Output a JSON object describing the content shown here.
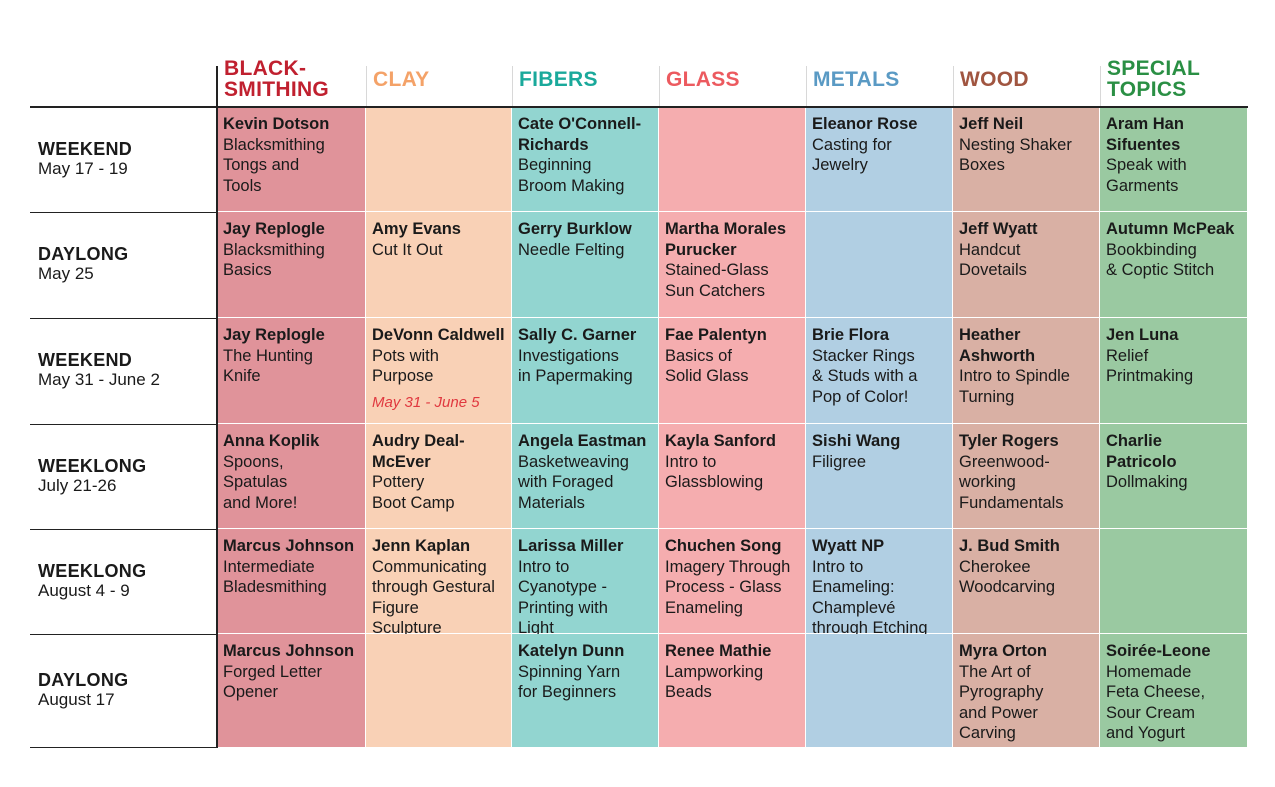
{
  "colors": {
    "blacksmithing": "#e0939a",
    "clay": "#f9d1b6",
    "fibers": "#92d5d0",
    "glass": "#f5adaf",
    "metals": "#b1cfe3",
    "wood": "#d9b0a4",
    "special": "#9ac9a1"
  },
  "columns": [
    {
      "key": "blacksmithing",
      "label": "BLACK-\nSMITHING",
      "color": "#c0202f"
    },
    {
      "key": "clay",
      "label": "CLAY",
      "color": "#f4a268"
    },
    {
      "key": "fibers",
      "label": "FIBERS",
      "color": "#1aa99b"
    },
    {
      "key": "glass",
      "label": "GLASS",
      "color": "#ec5a5f"
    },
    {
      "key": "metals",
      "label": "METALS",
      "color": "#5a9ac4"
    },
    {
      "key": "wood",
      "label": "WOOD",
      "color": "#a05540"
    },
    {
      "key": "special",
      "label": "SPECIAL\nTOPICS",
      "color": "#2a8f44"
    }
  ],
  "rows": [
    {
      "type": "WEEKEND",
      "dates": "May 17 - 19",
      "cells": [
        {
          "name": "Kevin Dotson",
          "title": "Blacksmithing\nTongs and\nTools"
        },
        null,
        {
          "name": "Cate O'Connell-\nRichards",
          "title": "Beginning\nBroom Making"
        },
        null,
        {
          "name": "Eleanor Rose",
          "title": "Casting for\nJewelry"
        },
        {
          "name": "Jeff Neil",
          "title": "Nesting Shaker\nBoxes"
        },
        {
          "name": "Aram Han\nSifuentes",
          "title": "Speak with\nGarments"
        }
      ]
    },
    {
      "type": "DAYLONG",
      "dates": "May 25",
      "cells": [
        {
          "name": "Jay Replogle",
          "title": "Blacksmithing\nBasics"
        },
        {
          "name": "Amy Evans",
          "title": "Cut It Out"
        },
        {
          "name": "Gerry Burklow",
          "title": "Needle Felting"
        },
        {
          "name": "Martha Morales\nPurucker",
          "title": "Stained-Glass\nSun Catchers"
        },
        null,
        {
          "name": "Jeff Wyatt",
          "title": "Handcut\nDovetails"
        },
        {
          "name": "Autumn McPeak",
          "title": "Bookbinding\n& Coptic Stitch"
        }
      ]
    },
    {
      "type": "WEEKEND",
      "dates": "May 31 - June 2",
      "cells": [
        {
          "name": "Jay Replogle",
          "title": "The Hunting\nKnife"
        },
        {
          "name": "DeVonn Caldwell",
          "title": "Pots with\nPurpose",
          "note": "May 31 - June 5"
        },
        {
          "name": "Sally C. Garner",
          "title": "Investigations\nin Papermaking"
        },
        {
          "name": "Fae Palentyn",
          "title": "Basics of\nSolid Glass"
        },
        {
          "name": "Brie Flora",
          "title": "Stacker Rings\n& Studs with a\nPop of Color!"
        },
        {
          "name": "Heather\nAshworth",
          "title": "Intro to Spindle\nTurning"
        },
        {
          "name": "Jen Luna",
          "title": "Relief\nPrintmaking"
        }
      ]
    },
    {
      "type": "WEEKLONG",
      "dates": "July 21-26",
      "cells": [
        {
          "name": "Anna Koplik",
          "title": "Spoons,\nSpatulas\nand More!"
        },
        {
          "name": "Audry Deal-\nMcEver",
          "title": "Pottery\nBoot Camp"
        },
        {
          "name": "Angela Eastman",
          "title": "Basketweaving\nwith Foraged\nMaterials"
        },
        {
          "name": "Kayla Sanford",
          "title": "Intro to\nGlassblowing"
        },
        {
          "name": "Sishi Wang",
          "title": "Filigree"
        },
        {
          "name": "Tyler Rogers",
          "title": "Greenwood-\nworking\nFundamentals"
        },
        {
          "name": "Charlie\nPatricolo",
          "title": "Dollmaking"
        }
      ]
    },
    {
      "type": "WEEKLONG",
      "dates": "August 4 - 9",
      "cells": [
        {
          "name": "Marcus Johnson",
          "title": "Intermediate\nBladesmithing"
        },
        {
          "name": "Jenn Kaplan",
          "title": "Communicating\nthrough Gestural\nFigure\nSculpture"
        },
        {
          "name": "Larissa Miller",
          "title": "Intro to\nCyanotype -\nPrinting with\nLight"
        },
        {
          "name": "Chuchen Song",
          "title": "Imagery Through\nProcess - Glass\nEnameling"
        },
        {
          "name": "Wyatt NP",
          "title": "Intro to\nEnameling:\nChamplevé\nthrough Etching"
        },
        {
          "name": "J. Bud Smith",
          "title": "Cherokee\nWoodcarving"
        },
        null
      ]
    },
    {
      "type": "DAYLONG",
      "dates": "August 17",
      "cells": [
        {
          "name": "Marcus Johnson",
          "title": "Forged Letter\nOpener"
        },
        null,
        {
          "name": "Katelyn Dunn",
          "title": "Spinning Yarn\nfor Beginners"
        },
        {
          "name": "Renee Mathie",
          "title": "Lampworking\nBeads"
        },
        null,
        {
          "name": "Myra Orton",
          "title": "The Art of\nPyrography\nand Power\nCarving"
        },
        {
          "name": "Soirée-Leone",
          "title": "Homemade\nFeta Cheese,\nSour Cream\nand Yogurt"
        }
      ]
    }
  ]
}
